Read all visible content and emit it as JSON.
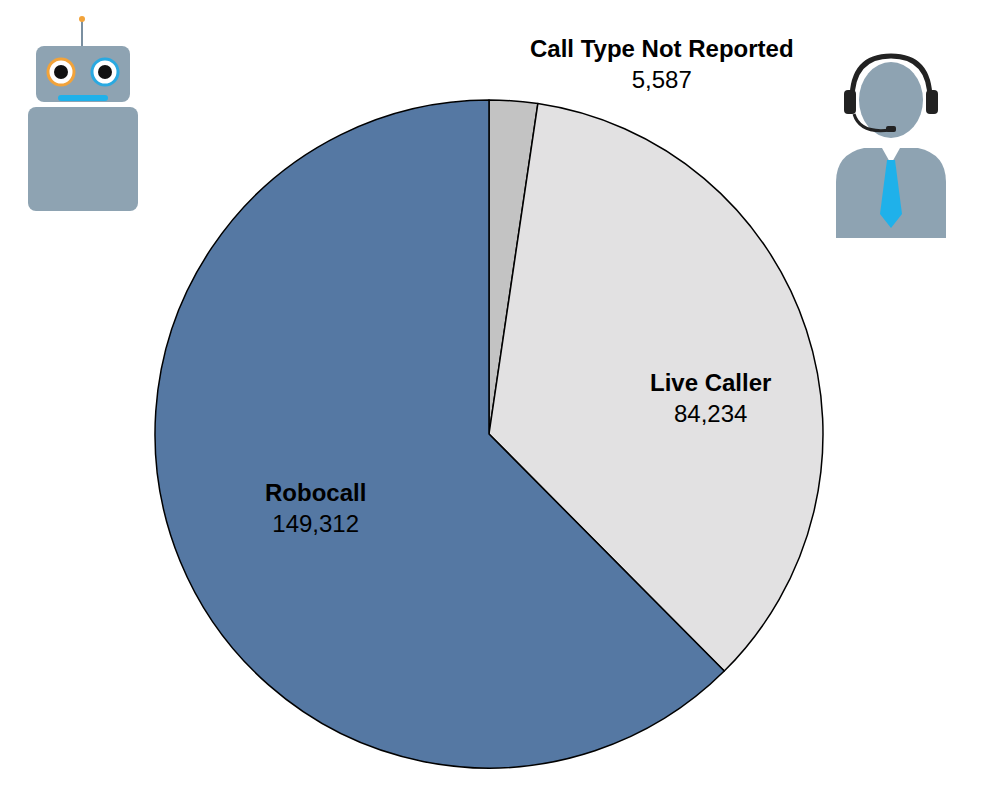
{
  "chart_data": {
    "type": "pie",
    "categories": [
      "Call Type Not Reported",
      "Live Caller",
      "Robocall"
    ],
    "values": [
      5587,
      84234,
      149312
    ],
    "value_labels": [
      "5,587",
      "84,234",
      "149,312"
    ],
    "colors": [
      "#c3c3c3",
      "#e2e1e2",
      "#5578a3"
    ],
    "data_labels": true
  }
}
